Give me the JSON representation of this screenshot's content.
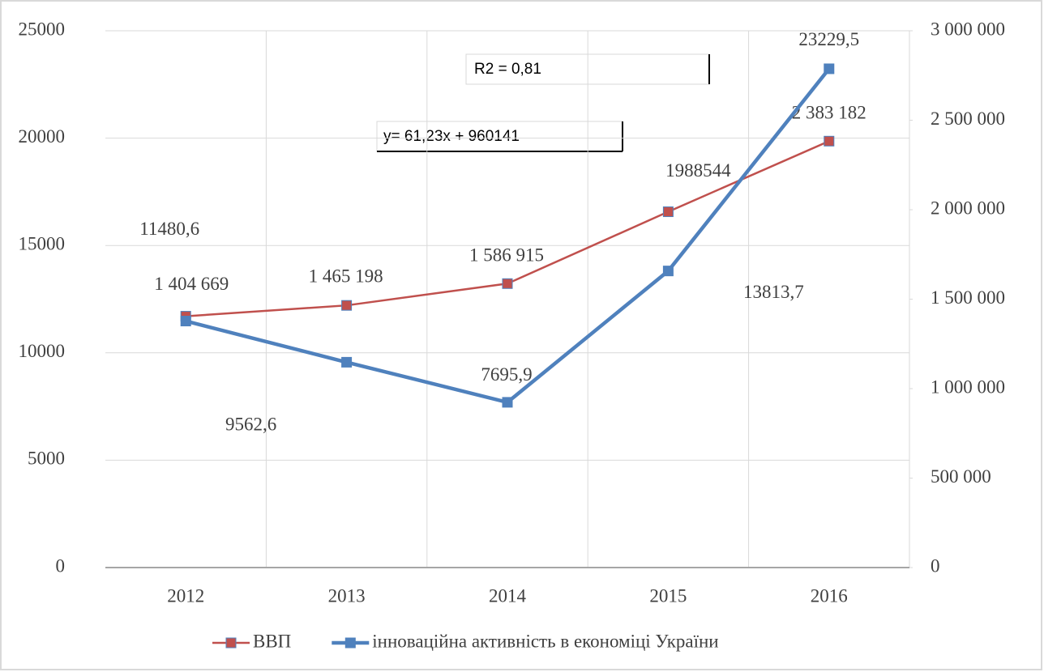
{
  "chart_data": {
    "type": "line",
    "categories": [
      "2012",
      "2013",
      "2014",
      "2015",
      "2016"
    ],
    "series": [
      {
        "name": "ВВП",
        "color": "#c0504d",
        "axis": "y2",
        "values": [
          1404669,
          1465198,
          1586915,
          1988544,
          2383182
        ],
        "value_labels": [
          "1 404 669",
          "1 465 198",
          "1 586 915",
          "1988544",
          "2 383 182"
        ]
      },
      {
        "name": "інноваційна активність в економіці України",
        "color": "#4f81bd",
        "values": [
          11480.6,
          9562.6,
          7695.9,
          13813.7,
          23229.5
        ],
        "value_labels": [
          "11480,6",
          "9562,6",
          "7695,9",
          "13813,7",
          "23229,5"
        ]
      }
    ],
    "ylim": [
      0,
      25000
    ],
    "yticks": [
      0,
      5000,
      10000,
      15000,
      20000,
      25000
    ],
    "y2lim": [
      0,
      3000000
    ],
    "y2ticks": [
      {
        "value": 0,
        "label": "0"
      },
      {
        "value": 500000,
        "label": "500 000"
      },
      {
        "value": 1000000,
        "label": "1 000 000"
      },
      {
        "value": 1500000,
        "label": "1 500 000"
      },
      {
        "value": 2000000,
        "label": "2 000 000"
      },
      {
        "value": 2500000,
        "label": "2 500 000"
      },
      {
        "value": 3000000,
        "label": "3 000 000"
      }
    ],
    "annotations": [
      "R2 =  0,81",
      "y=  61,23x + 960141"
    ],
    "grid": true,
    "legend": "bottom"
  }
}
